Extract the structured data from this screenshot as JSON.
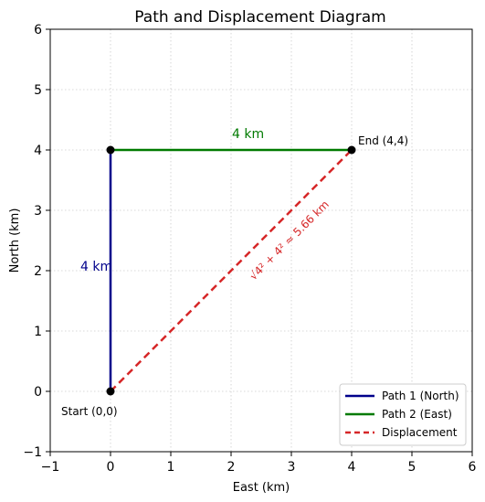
{
  "chart_data": {
    "type": "line",
    "title": "Path and Displacement Diagram",
    "xlabel": "East (km)",
    "ylabel": "North (km)",
    "xlim": [
      -1,
      6
    ],
    "ylim": [
      -1,
      6
    ],
    "xticks": [
      -1,
      0,
      1,
      2,
      3,
      4,
      5,
      6
    ],
    "yticks": [
      -1,
      0,
      1,
      2,
      3,
      4,
      5,
      6
    ],
    "xtick_labels": [
      "−1",
      "0",
      "1",
      "2",
      "3",
      "4",
      "5",
      "6"
    ],
    "ytick_labels": [
      "−1",
      "0",
      "1",
      "2",
      "3",
      "4",
      "5",
      "6"
    ],
    "grid": true,
    "legend_position": "lower-right",
    "series": [
      {
        "name": "Path 1 (North)",
        "color": "#00008b",
        "style": "solid",
        "x": [
          0,
          0
        ],
        "y": [
          0,
          4
        ]
      },
      {
        "name": "Path 2 (East)",
        "color": "#007a00",
        "style": "solid",
        "x": [
          0,
          4
        ],
        "y": [
          4,
          4
        ]
      },
      {
        "name": "Displacement",
        "color": "#d62728",
        "style": "dashed",
        "x": [
          0,
          4
        ],
        "y": [
          0,
          4
        ]
      }
    ],
    "points": [
      {
        "label": "Start (0,0)",
        "x": 0,
        "y": 0
      },
      {
        "label": "",
        "x": 0,
        "y": 4
      },
      {
        "label": "End (4,4)",
        "x": 4,
        "y": 4
      }
    ],
    "annotations": {
      "path1": {
        "text": "4 km",
        "x": -0.2,
        "y": 2,
        "color": "#00008b"
      },
      "path2": {
        "text": "4 km",
        "x": 2.3,
        "y": 4.25,
        "color": "#007a00"
      },
      "displacement": {
        "text": "√4² + 4² ≈ 5.66 km",
        "x": 2.3,
        "y": 2.35,
        "color": "#d62728"
      }
    }
  }
}
